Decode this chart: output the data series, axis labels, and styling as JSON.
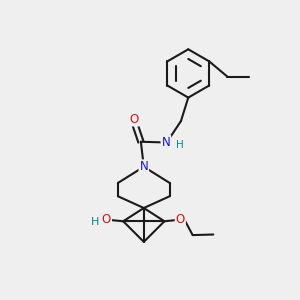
{
  "bg_color": "#efefef",
  "bond_color": "#1a1a1a",
  "N_color": "#1414cc",
  "O_color": "#cc1414",
  "H_color": "#008888",
  "line_width": 1.5,
  "font_size": 8.5,
  "figsize": [
    3.0,
    3.0
  ],
  "dpi": 100,
  "xlim": [
    0,
    10
  ],
  "ylim": [
    0,
    10
  ]
}
